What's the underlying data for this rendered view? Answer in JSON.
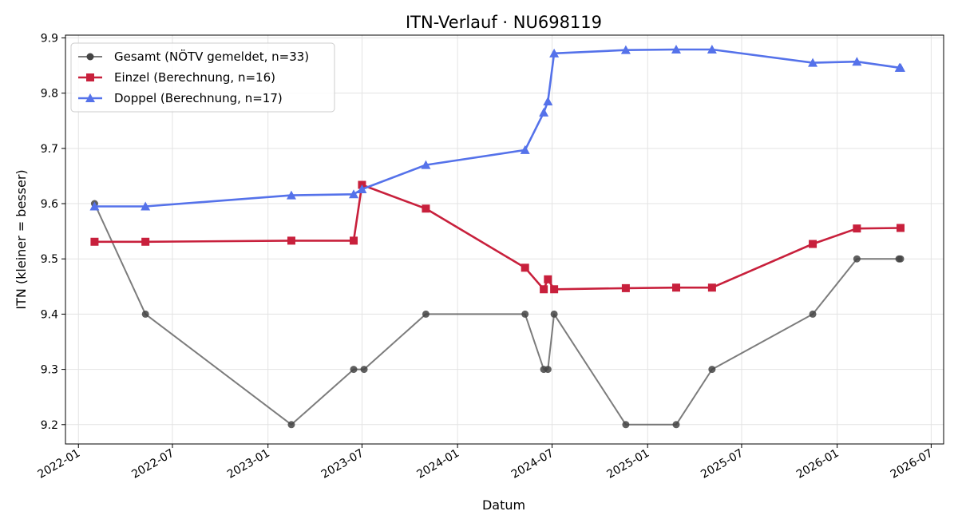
{
  "chart_data": {
    "type": "line",
    "title": "ITN-Verlauf · NU698119",
    "xlabel": "Datum",
    "ylabel": "ITN  (kleiner = besser)",
    "x_axis_type": "date",
    "xlim": [
      "2021-12-07",
      "2026-07-25"
    ],
    "ylim": [
      9.165,
      9.905
    ],
    "x_ticks": [
      "2022-01-01",
      "2022-07-01",
      "2023-01-01",
      "2023-07-01",
      "2024-01-01",
      "2024-07-01",
      "2025-01-01",
      "2025-07-01",
      "2026-01-01",
      "2026-07-01"
    ],
    "x_tick_labels": [
      "2022-01",
      "2022-07",
      "2023-01",
      "2023-07",
      "2024-01",
      "2024-07",
      "2025-01",
      "2025-07",
      "2026-01",
      "2026-07"
    ],
    "y_ticks": [
      9.2,
      9.3,
      9.4,
      9.5,
      9.6,
      9.7,
      9.8,
      9.9
    ],
    "y_tick_labels": [
      "9.2",
      "9.3",
      "9.4",
      "9.5",
      "9.6",
      "9.7",
      "9.8",
      "9.9"
    ],
    "grid": true,
    "legend_position": "top-left",
    "series": [
      {
        "name": "Gesamt (NÖTV gemeldet, n=33)",
        "color": "#444444",
        "marker": "circle",
        "points": [
          [
            "2022-02-01",
            9.6
          ],
          [
            "2022-05-10",
            9.4
          ],
          [
            "2023-02-15",
            9.2
          ],
          [
            "2023-06-15",
            9.3
          ],
          [
            "2023-07-05",
            9.3
          ],
          [
            "2023-11-01",
            9.4
          ],
          [
            "2024-05-10",
            9.4
          ],
          [
            "2024-06-15",
            9.3
          ],
          [
            "2024-06-23",
            9.3
          ],
          [
            "2024-07-05",
            9.4
          ],
          [
            "2024-11-20",
            9.2
          ],
          [
            "2025-02-25",
            9.2
          ],
          [
            "2025-05-05",
            9.3
          ],
          [
            "2025-11-15",
            9.4
          ],
          [
            "2026-02-08",
            9.5
          ],
          [
            "2026-04-30",
            9.5
          ],
          [
            "2026-05-03",
            9.5
          ]
        ]
      },
      {
        "name": "Einzel (Berechnung, n=16)",
        "color": "#c8203c",
        "marker": "square",
        "points": [
          [
            "2022-02-01",
            9.531
          ],
          [
            "2022-05-10",
            9.531
          ],
          [
            "2023-02-15",
            9.533
          ],
          [
            "2023-06-15",
            9.533
          ],
          [
            "2023-07-01",
            9.634
          ],
          [
            "2023-11-01",
            9.591
          ],
          [
            "2024-05-10",
            9.484
          ],
          [
            "2024-06-15",
            9.445
          ],
          [
            "2024-06-23",
            9.463
          ],
          [
            "2024-07-05",
            9.445
          ],
          [
            "2024-11-20",
            9.447
          ],
          [
            "2025-02-25",
            9.448
          ],
          [
            "2025-05-05",
            9.448
          ],
          [
            "2025-11-15",
            9.527
          ],
          [
            "2026-02-08",
            9.555
          ],
          [
            "2026-05-03",
            9.556
          ]
        ]
      },
      {
        "name": "Doppel (Berechnung, n=17)",
        "color": "#5572ea",
        "marker": "triangle",
        "points": [
          [
            "2022-02-01",
            9.595
          ],
          [
            "2022-05-10",
            9.595
          ],
          [
            "2023-02-15",
            9.615
          ],
          [
            "2023-06-15",
            9.617
          ],
          [
            "2023-07-01",
            9.626
          ],
          [
            "2023-11-01",
            9.67
          ],
          [
            "2024-05-10",
            9.697
          ],
          [
            "2024-06-15",
            9.765
          ],
          [
            "2024-06-23",
            9.785
          ],
          [
            "2024-07-05",
            9.872
          ],
          [
            "2024-11-20",
            9.878
          ],
          [
            "2025-02-25",
            9.879
          ],
          [
            "2025-05-05",
            9.879
          ],
          [
            "2025-11-15",
            9.855
          ],
          [
            "2026-02-08",
            9.857
          ],
          [
            "2026-05-01",
            9.846
          ],
          [
            "2026-05-03",
            9.846
          ]
        ]
      }
    ]
  }
}
